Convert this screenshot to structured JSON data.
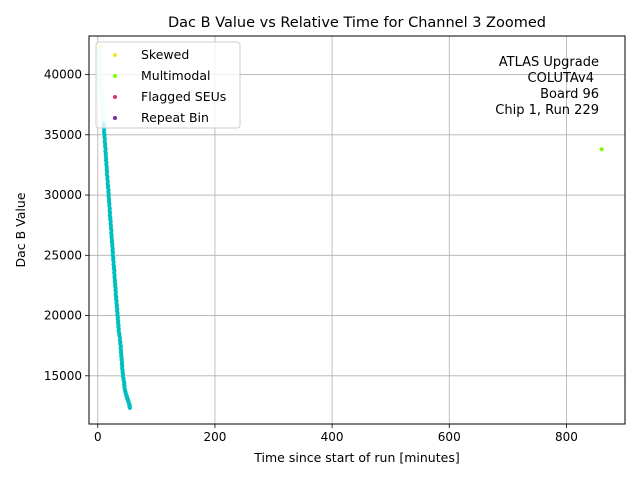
{
  "chart_data": {
    "type": "scatter",
    "title": "Dac B Value vs Relative Time for Channel 3 Zoomed",
    "xlabel": "Time since start of run [minutes]",
    "ylabel": "Dac B Value",
    "xlim": [
      -15,
      900
    ],
    "ylim": [
      11000,
      43200
    ],
    "xticks": [
      0,
      200,
      400,
      600,
      800
    ],
    "yticks": [
      15000,
      20000,
      25000,
      30000,
      35000,
      40000
    ],
    "grid": true,
    "legend_position": "top-left",
    "annotation": [
      "ATLAS Upgrade",
      "COLUTAv4",
      "Board 96",
      "Chip 1, Run 229"
    ],
    "main_series": {
      "color": "#00bfbf",
      "highlight_color": "#aaffee",
      "points": [
        [
          1,
          42200
        ],
        [
          2,
          41500
        ],
        [
          3,
          40800
        ],
        [
          4,
          40100
        ],
        [
          5,
          39400
        ],
        [
          6,
          38700
        ],
        [
          7,
          38000
        ],
        [
          8,
          37300
        ],
        [
          9,
          36600
        ],
        [
          10,
          35900
        ],
        [
          11,
          35200
        ],
        [
          12,
          34500
        ],
        [
          13,
          33800
        ],
        [
          14,
          33100
        ],
        [
          15,
          32400
        ],
        [
          16,
          31700
        ],
        [
          17,
          31000
        ],
        [
          18,
          30400
        ],
        [
          19,
          29700
        ],
        [
          20,
          29000
        ],
        [
          21,
          28300
        ],
        [
          22,
          27700
        ],
        [
          23,
          27000
        ],
        [
          24,
          26300
        ],
        [
          25,
          25700
        ],
        [
          26,
          25000
        ],
        [
          27,
          24300
        ],
        [
          28,
          23700
        ],
        [
          29,
          23000
        ],
        [
          30,
          22400
        ],
        [
          31,
          21700
        ],
        [
          32,
          21100
        ],
        [
          33,
          20500
        ],
        [
          34,
          19900
        ],
        [
          35,
          19300
        ],
        [
          36,
          18700
        ],
        [
          38,
          18000
        ],
        [
          39,
          17400
        ],
        [
          40,
          16800
        ],
        [
          41,
          16200
        ],
        [
          42,
          15600
        ],
        [
          43,
          15000
        ],
        [
          45,
          14400
        ],
        [
          46,
          13900
        ],
        [
          48,
          13500
        ],
        [
          50,
          13200
        ],
        [
          52,
          12900
        ],
        [
          54,
          12600
        ],
        [
          55,
          12300
        ]
      ]
    },
    "series": [
      {
        "name": "Skewed",
        "color": "#e5ee1f",
        "points": [
          [
            5,
            42300
          ]
        ]
      },
      {
        "name": "Multimodal",
        "color": "#7fff00",
        "points": [
          [
            860,
            33800
          ]
        ]
      },
      {
        "name": "Flagged SEUs",
        "color": "#e0305a",
        "points": []
      },
      {
        "name": "Repeat Bin",
        "color": "#7b2a9e",
        "points": []
      }
    ]
  }
}
